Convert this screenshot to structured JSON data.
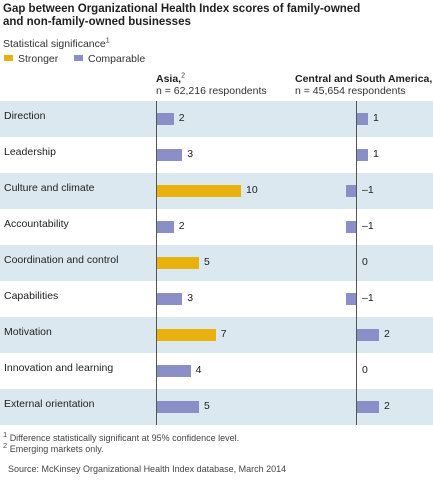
{
  "title_line1": "Gap between Organizational Health Index scores of family-owned",
  "title_line2": "and non-family-owned businesses",
  "legend": {
    "title": "Statistical significance",
    "title_sup": "1",
    "items": [
      {
        "label": "Stronger",
        "color": "#e8b10e"
      },
      {
        "label": "Comparable",
        "color": "#8a8fc7"
      }
    ]
  },
  "columns": [
    {
      "name": "Asia,",
      "sup": "2",
      "respondents": "n = 62,216 respondents"
    },
    {
      "name": "Central and South America,",
      "sup": "",
      "respondents": "n = 45,654 respondents"
    }
  ],
  "footnotes": [
    {
      "sup": "1",
      "text": "Difference statistically significant at 95% confidence level."
    },
    {
      "sup": "2",
      "text": "Emerging markets only."
    }
  ],
  "source": "Source: McKinsey Organizational Health Index database, March 2014",
  "colors": {
    "stronger": "#e8b10e",
    "comparable": "#8a8fc7",
    "band": "#dbe8f0"
  },
  "chart_data": {
    "type": "bar",
    "orientation": "horizontal",
    "categories": [
      "Direction",
      "Leadership",
      "Culture and climate",
      "Accountability",
      "Coordination and control",
      "Capabilities",
      "Motivation",
      "Innovation and learning",
      "External orientation"
    ],
    "series": [
      {
        "name": "Asia,",
        "values": [
          2,
          3,
          10,
          2,
          5,
          3,
          7,
          4,
          5
        ],
        "labels": [
          "2",
          "3",
          "10",
          "2",
          "5",
          "3",
          "7",
          "4",
          "5"
        ],
        "significance": [
          "Comparable",
          "Comparable",
          "Stronger",
          "Comparable",
          "Stronger",
          "Comparable",
          "Stronger",
          "Comparable",
          "Comparable"
        ]
      },
      {
        "name": "Central and South America,",
        "values": [
          1,
          1,
          -1,
          -1,
          0,
          -1,
          2,
          0,
          2
        ],
        "labels": [
          "1",
          "1",
          "–1",
          "–1",
          "0",
          "–1",
          "2",
          "0",
          "2"
        ],
        "significance": [
          "Comparable",
          "Comparable",
          "Comparable",
          "Comparable",
          "Comparable",
          "Comparable",
          "Comparable",
          "Comparable",
          "Comparable"
        ]
      }
    ]
  }
}
